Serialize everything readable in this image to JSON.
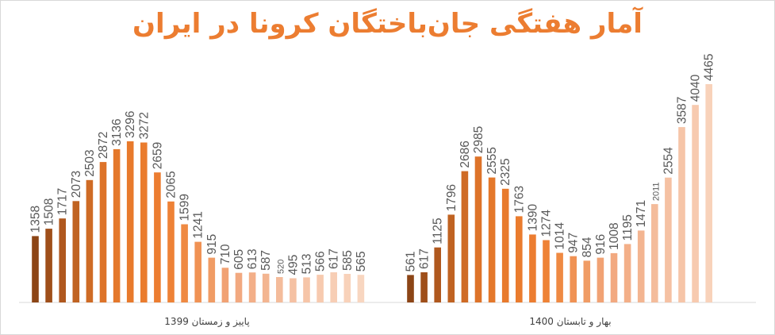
{
  "chart_data": {
    "type": "bar",
    "title": "آمار هفتگی جان‌باختگان کرونا در ایران",
    "ylim": [
      0,
      4465
    ],
    "grid": false,
    "groups": [
      {
        "name": "پاییز و زمستان 1399",
        "values": [
          1358,
          1508,
          1717,
          2073,
          2503,
          2872,
          3136,
          3296,
          3272,
          2659,
          2065,
          1599,
          1241,
          915,
          710,
          605,
          613,
          587,
          520,
          495,
          513,
          566,
          617,
          585,
          565
        ],
        "colors": [
          "#8c4516",
          "#9f4f1a",
          "#b0581e",
          "#c06322",
          "#cf6b25",
          "#dd7329",
          "#e4782b",
          "#e87a2c",
          "#ea7c2e",
          "#ec7d31",
          "#ee8236",
          "#ef8a43",
          "#f09254",
          "#f09c65",
          "#f1a274",
          "#f2a980",
          "#f3af88",
          "#f3b591",
          "#f4bc9b",
          "#f5c1a3",
          "#f6c5a8",
          "#f7caaf",
          "#f7ceb5",
          "#f8d2ba",
          "#f8d6c0"
        ]
      },
      {
        "name": "بهار و تابستان 1400",
        "values": [
          561,
          617,
          1125,
          1796,
          2686,
          2985,
          2555,
          2325,
          1763,
          1390,
          1274,
          1014,
          947,
          854,
          916,
          1008,
          1195,
          1471,
          2011,
          2554,
          3587,
          4040,
          4465
        ],
        "colors": [
          "#8c4516",
          "#9f4f1a",
          "#b0581e",
          "#c06322",
          "#cf6b25",
          "#dd7329",
          "#e4782b",
          "#e87a2c",
          "#ea7c2e",
          "#ec7d31",
          "#ee8236",
          "#ef8a43",
          "#f09254",
          "#f09c65",
          "#f1a274",
          "#f2a980",
          "#f3af88",
          "#f3b591",
          "#f4bc9b",
          "#f5c1a3",
          "#f6c5a8",
          "#f7caaf",
          "#f8d2ba"
        ]
      }
    ]
  }
}
